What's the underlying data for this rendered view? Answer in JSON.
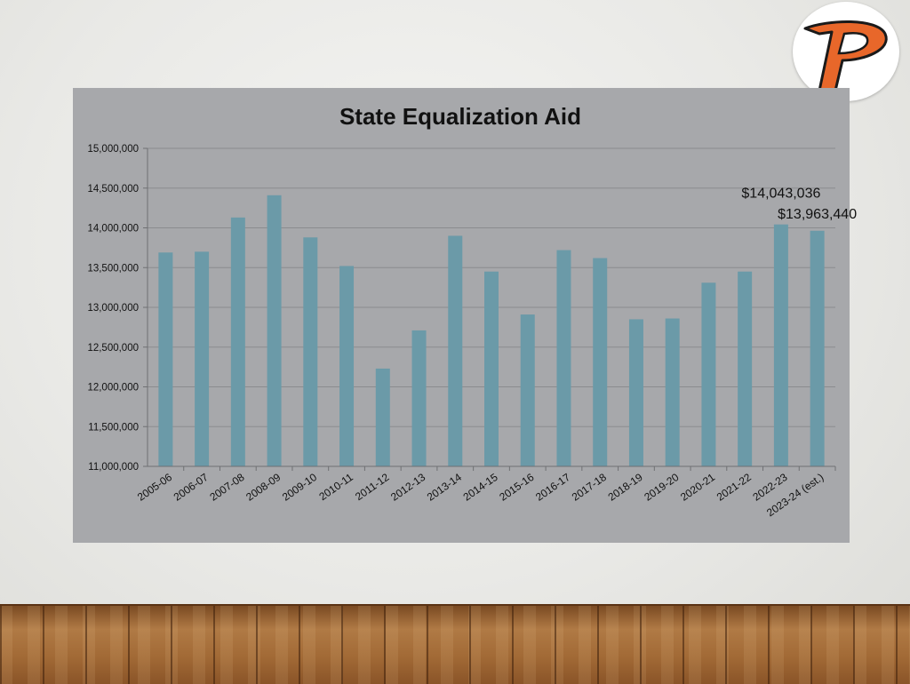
{
  "slide": {
    "logo_letter": "P",
    "logo_colors": {
      "primary": "#e8672a",
      "outline": "#1a1a1a"
    }
  },
  "chart_data": {
    "type": "bar",
    "title": "State Equalization Aid",
    "xlabel": "",
    "ylabel": "",
    "ylim": [
      11000000,
      15000000
    ],
    "y_ticks": [
      11000000,
      11500000,
      12000000,
      12500000,
      13000000,
      13500000,
      14000000,
      14500000,
      15000000
    ],
    "y_tick_labels": [
      "11,000,000",
      "11,500,000",
      "12,000,000",
      "12,500,000",
      "13,000,000",
      "13,500,000",
      "14,000,000",
      "14,500,000",
      "15,000,000"
    ],
    "grid": true,
    "bar_color": "#6b9aa8",
    "categories": [
      "2005-06",
      "2006-07",
      "2007-08",
      "2008-09",
      "2009-10",
      "2010-11",
      "2011-12",
      "2012-13",
      "2013-14",
      "2014-15",
      "2015-16",
      "2016-17",
      "2017-18",
      "2018-19",
      "2019-20",
      "2020-21",
      "2021-22",
      "2022-23",
      "2023-24 (est.)"
    ],
    "values": [
      13690000,
      13700000,
      14130000,
      14410000,
      13880000,
      13520000,
      12230000,
      12710000,
      13900000,
      13450000,
      12910000,
      13720000,
      13620000,
      12850000,
      12860000,
      13310000,
      13450000,
      14043036,
      13963440
    ],
    "annotations": [
      {
        "category": "2022-23",
        "text": "$14,043,036"
      },
      {
        "category": "2023-24 (est.)",
        "text": "$13,963,440"
      }
    ]
  }
}
